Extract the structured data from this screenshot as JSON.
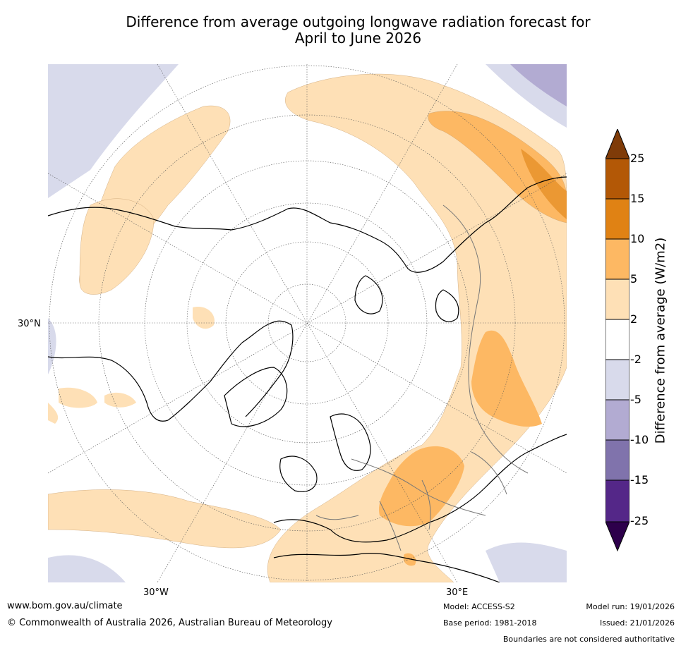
{
  "title_line1": "Difference from average outgoing longwave radiation forecast for",
  "title_line2": "April to June 2026",
  "lat_label": "30°N",
  "lon_labels": {
    "west": "30°W",
    "east": "30°E"
  },
  "colorbar": {
    "title": "Difference from average (W/m2)",
    "ticks": [
      "25",
      "15",
      "10",
      "5",
      "2",
      "-2",
      "-5",
      "-10",
      "-15",
      "-25"
    ],
    "colors": [
      "#7f3b08",
      "#b35806",
      "#e08214",
      "#fdb863",
      "#fee0b6",
      "#ffffff",
      "#d8daeb",
      "#b2abd2",
      "#8073ac",
      "#542788",
      "#2d004b"
    ]
  },
  "footer": {
    "url": "www.bom.gov.au/climate",
    "copyright": "© Commonwealth of Australia 2026, Australian Bureau of Meteorology",
    "model": "Model: ACCESS-S2",
    "base_period": "Base period: 1981-2018",
    "model_run": "Model run: 19/01/2026",
    "issued": "Issued: 21/01/2026",
    "disclaimer": "Boundaries are not considered authoritative"
  }
}
